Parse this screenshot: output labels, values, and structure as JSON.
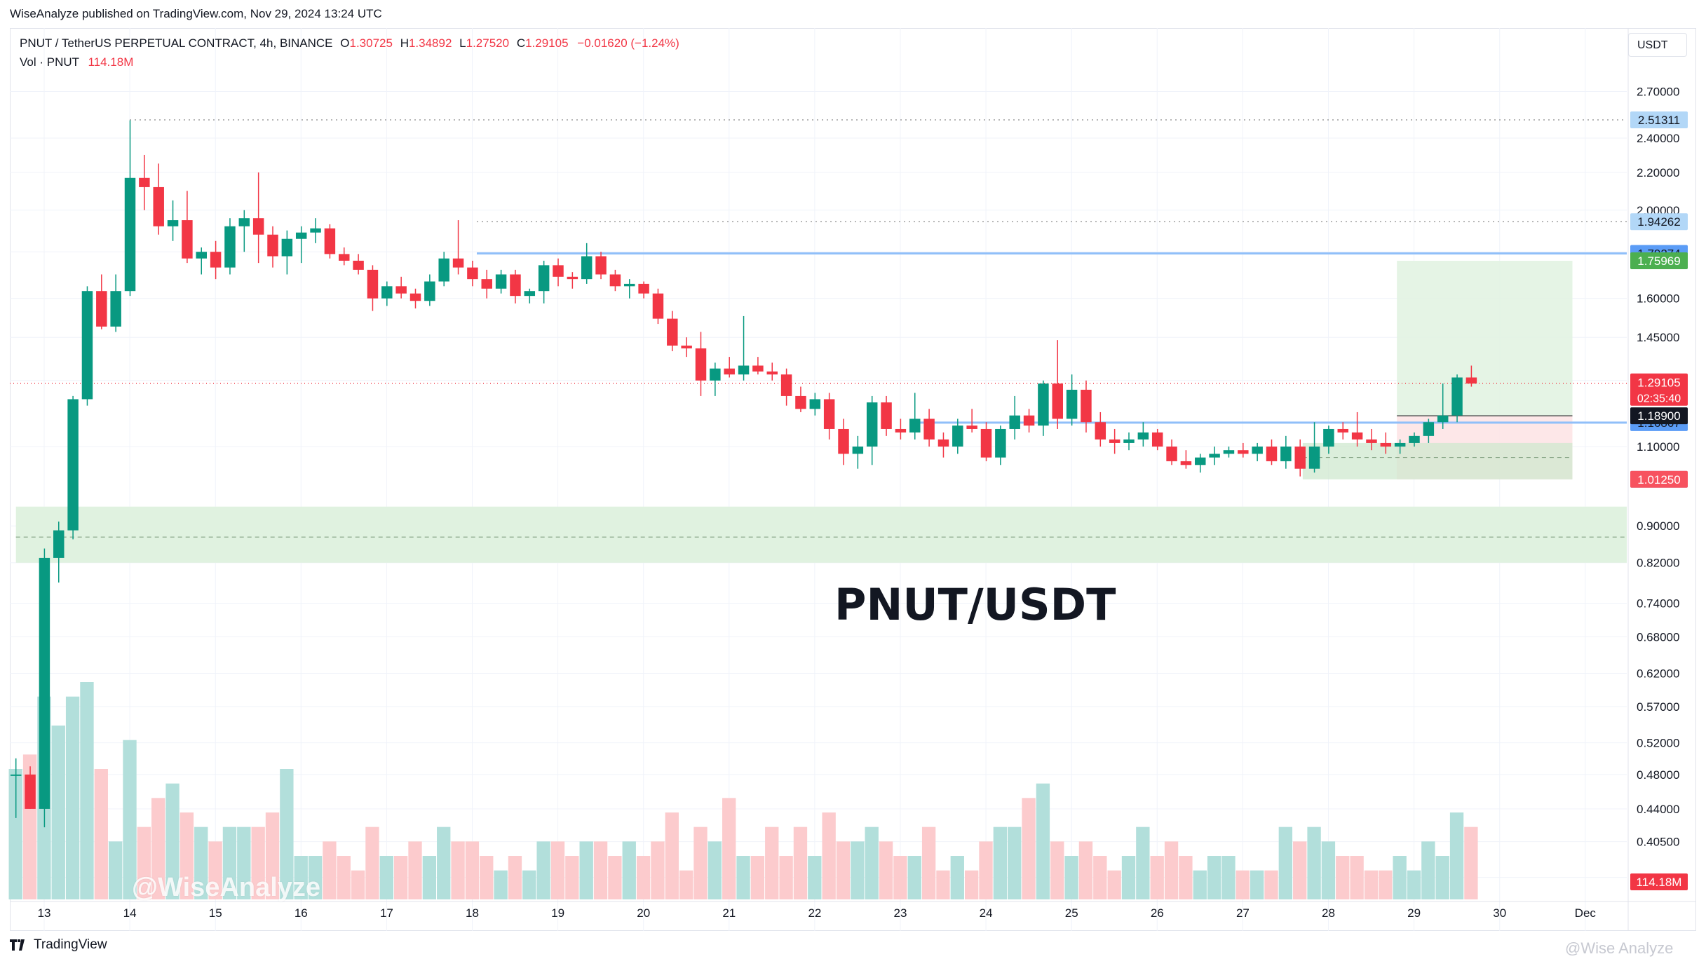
{
  "header": {
    "published_by": "WiseAnalyze published on TradingView.com, Nov 29, 2024 13:24 UTC"
  },
  "legend": {
    "symbol": "PNUT / TetherUS PERPETUAL CONTRACT, 4h, BINANCE",
    "open_label": "O",
    "open": "1.30725",
    "high_label": "H",
    "high": "1.34892",
    "low_label": "L",
    "low": "1.27520",
    "close_label": "C",
    "close": "1.29105",
    "change": "−0.01620 (−1.24%)",
    "vol_label": "Vol · PNUT",
    "vol_value": "114.18M"
  },
  "currency_button": "USDT",
  "watermarks": {
    "left": "@WiseAnalyze",
    "bottom_right": "@Wise Analyze"
  },
  "footer": {
    "brand": "TradingView"
  },
  "colors": {
    "up": "#089981",
    "down": "#f23645",
    "vol_up": "#b2dfdb",
    "vol_down": "#fccbcd",
    "zone_green": "#e0f2e0",
    "zone_red": "#fde4e6",
    "level_line": "#90bff9"
  },
  "chart_data": {
    "type": "candlestick",
    "title": "PNUT/USDT",
    "timeframe": "4h",
    "y_scale": "log",
    "ylim": [
      0.35,
      2.8
    ],
    "y_ticks": [
      "2.70000",
      "2.40000",
      "2.20000",
      "2.00000",
      "1.80000",
      "1.60000",
      "1.45000",
      "1.30000",
      "1.10000",
      "0.90000",
      "0.82000",
      "0.74000",
      "0.68000",
      "0.62000",
      "0.57000",
      "0.52000",
      "0.48000",
      "0.44000",
      "0.40500",
      "0.37000"
    ],
    "x_ticks": [
      {
        "label": "13",
        "day": 13
      },
      {
        "label": "14",
        "day": 14
      },
      {
        "label": "15",
        "day": 15
      },
      {
        "label": "16",
        "day": 16
      },
      {
        "label": "17",
        "day": 17
      },
      {
        "label": "18",
        "day": 18
      },
      {
        "label": "19",
        "day": 19
      },
      {
        "label": "20",
        "day": 20
      },
      {
        "label": "21",
        "day": 21
      },
      {
        "label": "22",
        "day": 22
      },
      {
        "label": "23",
        "day": 23
      },
      {
        "label": "24",
        "day": 24
      },
      {
        "label": "25",
        "day": 25
      },
      {
        "label": "26",
        "day": 26
      },
      {
        "label": "27",
        "day": 27
      },
      {
        "label": "28",
        "day": 28
      },
      {
        "label": "29",
        "day": 29
      },
      {
        "label": "30",
        "day": 30
      },
      {
        "label": "Dec",
        "day": 31
      }
    ],
    "first_candle_day": 12.67,
    "candle_hours": 4,
    "candles": [
      [
        0.48,
        0.5,
        0.43,
        0.48,
        9
      ],
      [
        0.48,
        0.49,
        0.44,
        0.44,
        10
      ],
      [
        0.44,
        0.85,
        0.42,
        0.83,
        14
      ],
      [
        0.83,
        0.91,
        0.78,
        0.89,
        12
      ],
      [
        0.89,
        1.25,
        0.87,
        1.24,
        14
      ],
      [
        1.24,
        1.65,
        1.22,
        1.63,
        15
      ],
      [
        1.63,
        1.7,
        1.48,
        1.49,
        9
      ],
      [
        1.49,
        1.7,
        1.47,
        1.63,
        4
      ],
      [
        1.63,
        2.51,
        1.61,
        2.17,
        11
      ],
      [
        2.17,
        2.3,
        2.0,
        2.12,
        5
      ],
      [
        2.12,
        2.25,
        1.88,
        1.92,
        7
      ],
      [
        1.92,
        2.05,
        1.85,
        1.95,
        8
      ],
      [
        1.95,
        2.1,
        1.75,
        1.77,
        6
      ],
      [
        1.77,
        1.82,
        1.7,
        1.8,
        5
      ],
      [
        1.8,
        1.85,
        1.68,
        1.73,
        4
      ],
      [
        1.73,
        1.96,
        1.7,
        1.92,
        5
      ],
      [
        1.92,
        2.0,
        1.8,
        1.96,
        5
      ],
      [
        1.96,
        2.2,
        1.75,
        1.88,
        5
      ],
      [
        1.88,
        1.92,
        1.73,
        1.78,
        6
      ],
      [
        1.78,
        1.9,
        1.7,
        1.86,
        9
      ],
      [
        1.86,
        1.92,
        1.75,
        1.89,
        3
      ],
      [
        1.89,
        1.96,
        1.84,
        1.91,
        3
      ],
      [
        1.91,
        1.93,
        1.77,
        1.79,
        4
      ],
      [
        1.79,
        1.82,
        1.74,
        1.76,
        3
      ],
      [
        1.76,
        1.79,
        1.7,
        1.72,
        2
      ],
      [
        1.72,
        1.74,
        1.55,
        1.6,
        5
      ],
      [
        1.6,
        1.67,
        1.57,
        1.65,
        3
      ],
      [
        1.65,
        1.69,
        1.6,
        1.62,
        3
      ],
      [
        1.62,
        1.64,
        1.56,
        1.59,
        4
      ],
      [
        1.59,
        1.7,
        1.57,
        1.67,
        3
      ],
      [
        1.67,
        1.8,
        1.65,
        1.77,
        5
      ],
      [
        1.77,
        1.95,
        1.7,
        1.73,
        4
      ],
      [
        1.73,
        1.76,
        1.65,
        1.68,
        4
      ],
      [
        1.68,
        1.72,
        1.6,
        1.64,
        3
      ],
      [
        1.64,
        1.72,
        1.62,
        1.7,
        2
      ],
      [
        1.7,
        1.72,
        1.58,
        1.61,
        3
      ],
      [
        1.61,
        1.64,
        1.58,
        1.63,
        2
      ],
      [
        1.63,
        1.76,
        1.58,
        1.74,
        4
      ],
      [
        1.74,
        1.77,
        1.65,
        1.69,
        4
      ],
      [
        1.69,
        1.71,
        1.64,
        1.68,
        3
      ],
      [
        1.68,
        1.84,
        1.66,
        1.78,
        4
      ],
      [
        1.78,
        1.8,
        1.68,
        1.7,
        4
      ],
      [
        1.7,
        1.72,
        1.63,
        1.65,
        3
      ],
      [
        1.65,
        1.68,
        1.6,
        1.66,
        4
      ],
      [
        1.66,
        1.67,
        1.6,
        1.62,
        3
      ],
      [
        1.62,
        1.64,
        1.5,
        1.52,
        4
      ],
      [
        1.52,
        1.55,
        1.4,
        1.42,
        6
      ],
      [
        1.42,
        1.45,
        1.38,
        1.41,
        2
      ],
      [
        1.41,
        1.47,
        1.25,
        1.3,
        5
      ],
      [
        1.3,
        1.36,
        1.25,
        1.34,
        4
      ],
      [
        1.34,
        1.38,
        1.31,
        1.32,
        7
      ],
      [
        1.32,
        1.53,
        1.3,
        1.35,
        3
      ],
      [
        1.35,
        1.38,
        1.32,
        1.33,
        3
      ],
      [
        1.33,
        1.36,
        1.3,
        1.32,
        5
      ],
      [
        1.32,
        1.34,
        1.22,
        1.25,
        3
      ],
      [
        1.25,
        1.28,
        1.2,
        1.21,
        5
      ],
      [
        1.21,
        1.26,
        1.19,
        1.24,
        3
      ],
      [
        1.24,
        1.26,
        1.12,
        1.15,
        6
      ],
      [
        1.15,
        1.18,
        1.05,
        1.08,
        4
      ],
      [
        1.08,
        1.13,
        1.04,
        1.1,
        4
      ],
      [
        1.1,
        1.25,
        1.05,
        1.23,
        5
      ],
      [
        1.23,
        1.25,
        1.13,
        1.15,
        4
      ],
      [
        1.15,
        1.18,
        1.12,
        1.14,
        3
      ],
      [
        1.14,
        1.26,
        1.12,
        1.18,
        3
      ],
      [
        1.18,
        1.21,
        1.1,
        1.12,
        5
      ],
      [
        1.12,
        1.14,
        1.07,
        1.1,
        2
      ],
      [
        1.1,
        1.18,
        1.08,
        1.16,
        3
      ],
      [
        1.16,
        1.21,
        1.14,
        1.15,
        2
      ],
      [
        1.15,
        1.17,
        1.06,
        1.07,
        4
      ],
      [
        1.07,
        1.16,
        1.05,
        1.15,
        5
      ],
      [
        1.15,
        1.25,
        1.12,
        1.19,
        5
      ],
      [
        1.19,
        1.21,
        1.14,
        1.16,
        7
      ],
      [
        1.16,
        1.3,
        1.13,
        1.29,
        8
      ],
      [
        1.29,
        1.44,
        1.15,
        1.18,
        4
      ],
      [
        1.18,
        1.32,
        1.16,
        1.27,
        3
      ],
      [
        1.27,
        1.3,
        1.14,
        1.17,
        4
      ],
      [
        1.17,
        1.2,
        1.1,
        1.12,
        3
      ],
      [
        1.12,
        1.15,
        1.08,
        1.11,
        2
      ],
      [
        1.11,
        1.14,
        1.09,
        1.12,
        3
      ],
      [
        1.12,
        1.17,
        1.1,
        1.14,
        5
      ],
      [
        1.14,
        1.15,
        1.09,
        1.1,
        3
      ],
      [
        1.1,
        1.12,
        1.05,
        1.06,
        4
      ],
      [
        1.06,
        1.09,
        1.04,
        1.05,
        3
      ],
      [
        1.05,
        1.08,
        1.03,
        1.07,
        2
      ],
      [
        1.07,
        1.1,
        1.05,
        1.08,
        3
      ],
      [
        1.08,
        1.1,
        1.07,
        1.09,
        3
      ],
      [
        1.09,
        1.11,
        1.07,
        1.08,
        2
      ],
      [
        1.08,
        1.11,
        1.06,
        1.1,
        2
      ],
      [
        1.1,
        1.12,
        1.05,
        1.06,
        2
      ],
      [
        1.06,
        1.13,
        1.04,
        1.1,
        5
      ],
      [
        1.1,
        1.12,
        1.02,
        1.04,
        4
      ],
      [
        1.04,
        1.17,
        1.03,
        1.1,
        5
      ],
      [
        1.1,
        1.16,
        1.08,
        1.15,
        4
      ],
      [
        1.15,
        1.17,
        1.12,
        1.14,
        3
      ],
      [
        1.14,
        1.2,
        1.1,
        1.12,
        3
      ],
      [
        1.12,
        1.15,
        1.09,
        1.11,
        2
      ],
      [
        1.11,
        1.14,
        1.08,
        1.1,
        2
      ],
      [
        1.1,
        1.12,
        1.08,
        1.11,
        3
      ],
      [
        1.11,
        1.14,
        1.1,
        1.13,
        2
      ],
      [
        1.13,
        1.18,
        1.11,
        1.17,
        4
      ],
      [
        1.17,
        1.29,
        1.15,
        1.19,
        3
      ],
      [
        1.19,
        1.32,
        1.17,
        1.31,
        6
      ],
      [
        1.31,
        1.35,
        1.28,
        1.29,
        5
      ]
    ],
    "levels": [
      {
        "price": 2.51311,
        "label": "2.51311",
        "style": "dotted",
        "badge_color": "#b2d7f7",
        "text_color": "#131722"
      },
      {
        "price": 1.94262,
        "label": "1.94262",
        "style": "dotted",
        "badge_color": "#b2d7f7",
        "text_color": "#131722"
      },
      {
        "price": 1.79274,
        "label": "1.79274",
        "style": "solid",
        "badge_color": "#5b9cf6",
        "text_color": "#131722"
      },
      {
        "price": 1.16867,
        "label": "1.16867",
        "style": "solid",
        "badge_color": "#5b9cf6",
        "text_color": "#131722"
      },
      {
        "price": 1.01252,
        "label": "1.01252",
        "style": "none",
        "badge_color": "#b2d7f7",
        "text_color": "#131722"
      }
    ],
    "position_badges": [
      {
        "price": 1.75969,
        "label": "1.75969",
        "color": "#4caf50"
      },
      {
        "price": 1.189,
        "label": "1.18900",
        "color": "#131722"
      },
      {
        "price": 1.0125,
        "label": "1.01250",
        "color": "#f7525f"
      }
    ],
    "last_price": {
      "label": "1.29105",
      "countdown": "02:35:40",
      "color": "#f23645"
    },
    "volume_badge": {
      "label": "114.18M",
      "color": "#f23645"
    },
    "zones": [
      {
        "name": "demand-zone",
        "from_day": 12.67,
        "to_day": 31.5,
        "low": 0.82,
        "high": 0.945,
        "mid": 0.875
      }
    ],
    "position": {
      "start_day": 28.8,
      "end_day": 30.85,
      "entry": 1.189,
      "target": 1.75969,
      "stop": 1.0125,
      "range_box": {
        "start_day": 27.7,
        "end_day": 30.85,
        "low": 1.0125,
        "high": 1.11,
        "mid": 1.07
      }
    }
  }
}
